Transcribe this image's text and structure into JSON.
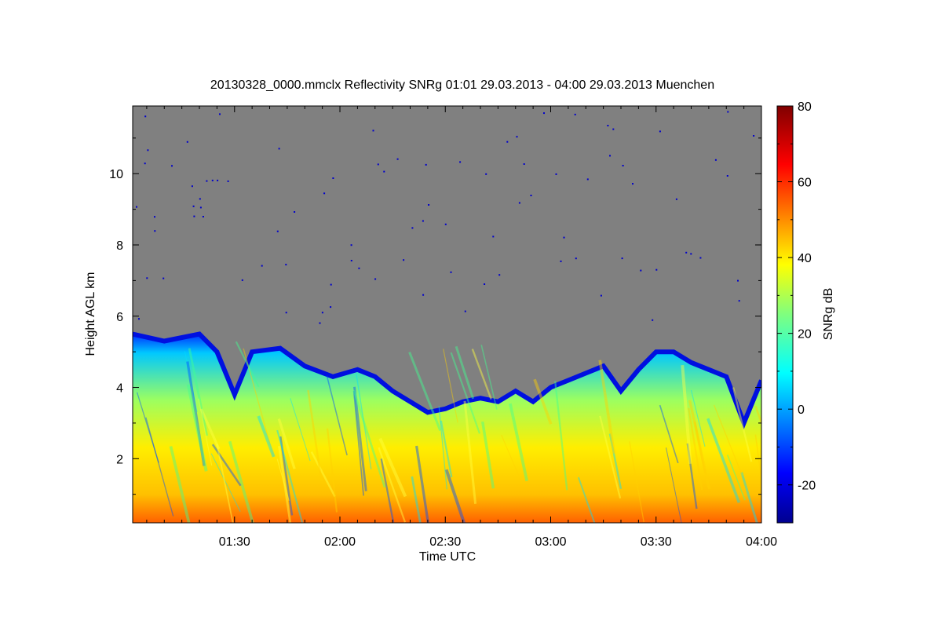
{
  "chart_data": {
    "type": "heatmap",
    "title": "20130328_0000.mmclx Reflectivity SNRg   01:01 29.03.2013 - 04:00 29.03.2013 Muenchen",
    "xlabel": "Time UTC",
    "ylabel": "Height AGL km",
    "xlim": [
      "01:01",
      "04:00"
    ],
    "ylim": [
      0.2,
      11.9
    ],
    "x_ticks": [
      "01:30",
      "02:00",
      "02:30",
      "03:00",
      "03:30",
      "04:00"
    ],
    "y_ticks": [
      "2",
      "4",
      "6",
      "8",
      "10"
    ],
    "colorbar": {
      "label": "SNRg dB",
      "range": [
        -30,
        80
      ],
      "ticks": [
        "-20",
        "0",
        "20",
        "40",
        "60",
        "80"
      ],
      "colormap": "jet"
    },
    "colors": {
      "no_signal": "#808080"
    },
    "cloud_top_km": [
      {
        "t": "01:01",
        "h": 5.5
      },
      {
        "t": "01:10",
        "h": 5.3
      },
      {
        "t": "01:20",
        "h": 5.5
      },
      {
        "t": "01:25",
        "h": 5.0
      },
      {
        "t": "01:30",
        "h": 3.8
      },
      {
        "t": "01:35",
        "h": 5.0
      },
      {
        "t": "01:43",
        "h": 5.1
      },
      {
        "t": "01:50",
        "h": 4.6
      },
      {
        "t": "01:58",
        "h": 4.3
      },
      {
        "t": "02:05",
        "h": 4.5
      },
      {
        "t": "02:10",
        "h": 4.3
      },
      {
        "t": "02:15",
        "h": 3.9
      },
      {
        "t": "02:20",
        "h": 3.6
      },
      {
        "t": "02:25",
        "h": 3.3
      },
      {
        "t": "02:30",
        "h": 3.4
      },
      {
        "t": "02:35",
        "h": 3.6
      },
      {
        "t": "02:40",
        "h": 3.7
      },
      {
        "t": "02:45",
        "h": 3.6
      },
      {
        "t": "02:50",
        "h": 3.9
      },
      {
        "t": "02:55",
        "h": 3.6
      },
      {
        "t": "03:00",
        "h": 4.0
      },
      {
        "t": "03:05",
        "h": 4.2
      },
      {
        "t": "03:10",
        "h": 4.4
      },
      {
        "t": "03:15",
        "h": 4.6
      },
      {
        "t": "03:20",
        "h": 3.9
      },
      {
        "t": "03:25",
        "h": 4.5
      },
      {
        "t": "03:30",
        "h": 5.0
      },
      {
        "t": "03:35",
        "h": 5.0
      },
      {
        "t": "03:40",
        "h": 4.7
      },
      {
        "t": "03:45",
        "h": 4.5
      },
      {
        "t": "03:50",
        "h": 4.3
      },
      {
        "t": "03:55",
        "h": 3.0
      },
      {
        "t": "04:00",
        "h": 4.2
      }
    ]
  }
}
